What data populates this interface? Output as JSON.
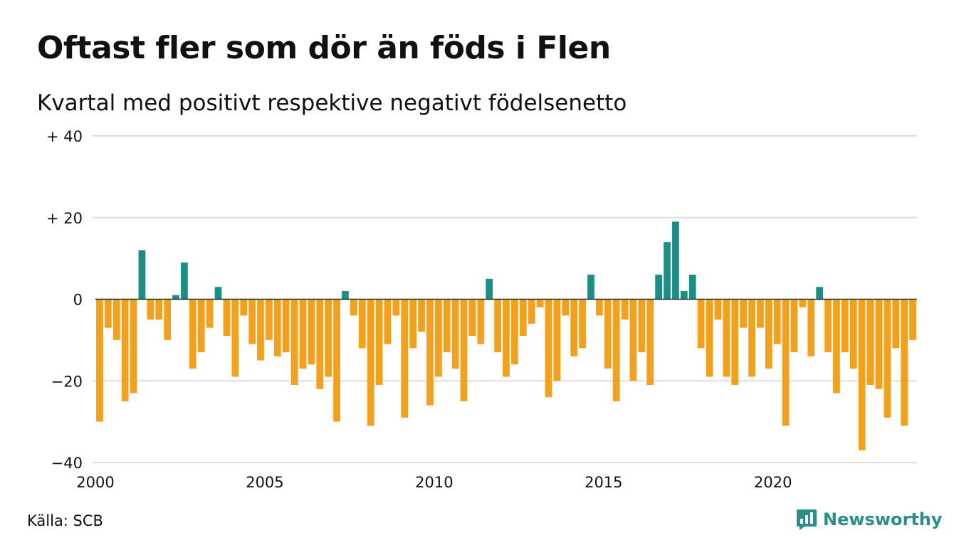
{
  "header": {
    "title": "Oftast fler som dör än föds i Flen",
    "subtitle": "Kvartal med positivt respektive negativt födelsenetto"
  },
  "footer": {
    "source": "Källa: SCB",
    "brand": "Newsworthy"
  },
  "colors": {
    "positive": "#1a8f86",
    "negative": "#f5a01a",
    "grid": "#dddddd",
    "zero_line": "#222222",
    "brand": "#2a8f84"
  },
  "chart_data": {
    "type": "bar",
    "title": "Oftast fler som dör än föds i Flen",
    "subtitle": "Kvartal med positivt respektive negativt födelsenetto",
    "xlabel": "",
    "ylabel": "",
    "ylim": [
      -40,
      40
    ],
    "yticks": [
      {
        "value": 40,
        "label": "+ 40"
      },
      {
        "value": 20,
        "label": "+ 20"
      },
      {
        "value": 0,
        "label": "0"
      },
      {
        "value": -20,
        "label": "−20"
      },
      {
        "value": -40,
        "label": "−40"
      }
    ],
    "xticks": [
      {
        "value": 2000,
        "label": "2000"
      },
      {
        "value": 2005,
        "label": "2005"
      },
      {
        "value": 2010,
        "label": "2010"
      },
      {
        "value": 2015,
        "label": "2015"
      },
      {
        "value": 2020,
        "label": "2020"
      }
    ],
    "x_start_year": 2000,
    "periods_per_year": 4,
    "grid": true,
    "values": [
      -30,
      -7,
      -10,
      -25,
      -23,
      12,
      -5,
      -5,
      -10,
      1,
      9,
      -17,
      -13,
      -7,
      3,
      -9,
      -19,
      -4,
      -11,
      -15,
      -10,
      -14,
      -13,
      -21,
      -17,
      -16,
      -22,
      -19,
      -30,
      2,
      -4,
      -12,
      -31,
      -21,
      -11,
      -4,
      -29,
      -12,
      -8,
      -26,
      -19,
      -13,
      -17,
      -25,
      -9,
      -11,
      5,
      -13,
      -19,
      -16,
      -9,
      -6,
      -2,
      -24,
      -20,
      -4,
      -14,
      -12,
      6,
      -4,
      -17,
      -25,
      -5,
      -20,
      -13,
      -21,
      6,
      14,
      19,
      2,
      6,
      -12,
      -19,
      -5,
      -19,
      -21,
      -7,
      -19,
      -7,
      -17,
      -11,
      -31,
      -13,
      -2,
      -14,
      3,
      -13,
      -23,
      -13,
      -17,
      -37,
      -21,
      -22,
      -29,
      -12,
      -31,
      -10
    ]
  }
}
